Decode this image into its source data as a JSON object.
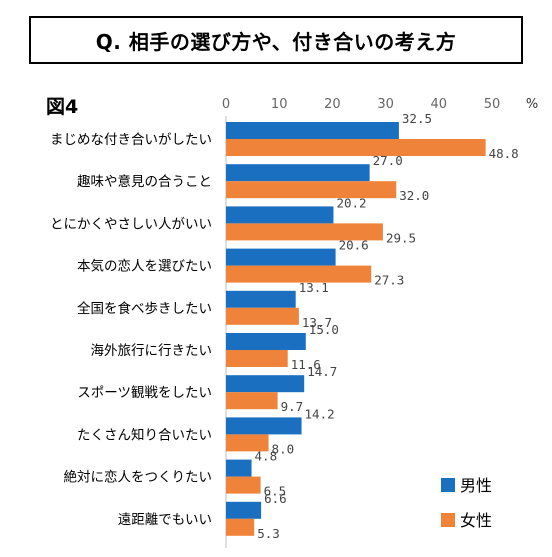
{
  "title": "Q. 相手の選び方や、付き合いの考え方",
  "figure_label": "図4",
  "chart_data": {
    "type": "bar",
    "orientation": "horizontal",
    "categories": [
      "まじめな付き合いがしたい",
      "趣味や意見の合うこと",
      "とにかくやさしい人がいい",
      "本気の恋人を選びたい",
      "全国を食べ歩きしたい",
      "海外旅行に行きたい",
      "スポーツ観戦をしたい",
      "たくさん知り合いたい",
      "絶対に恋人をつくりたい",
      "遠距離でもいい"
    ],
    "series": [
      {
        "name": "男性",
        "color": "#1a6fc0",
        "values": [
          32.5,
          27.0,
          20.2,
          20.6,
          13.1,
          15.0,
          14.7,
          14.2,
          4.8,
          6.6
        ],
        "labels": [
          "32.5",
          "27.0",
          "20.2",
          "20.6",
          "13.1",
          "15.0",
          "14.7",
          "14.2",
          "4.8",
          "6.6"
        ]
      },
      {
        "name": "女性",
        "color": "#f0833a",
        "values": [
          48.8,
          32.0,
          29.5,
          27.3,
          13.7,
          11.6,
          9.7,
          8.0,
          6.5,
          5.3
        ],
        "labels": [
          "48.8",
          "32.0",
          "29.5",
          "27.3",
          "13.7",
          "11.6",
          "9.7",
          "8.0",
          "6.5",
          "5.3"
        ]
      }
    ],
    "xlim": [
      0,
      50
    ],
    "x_ticks": [
      "0",
      "10",
      "20",
      "30",
      "40",
      "50"
    ],
    "x_unit": "%",
    "legend_position": "bottom-right"
  }
}
